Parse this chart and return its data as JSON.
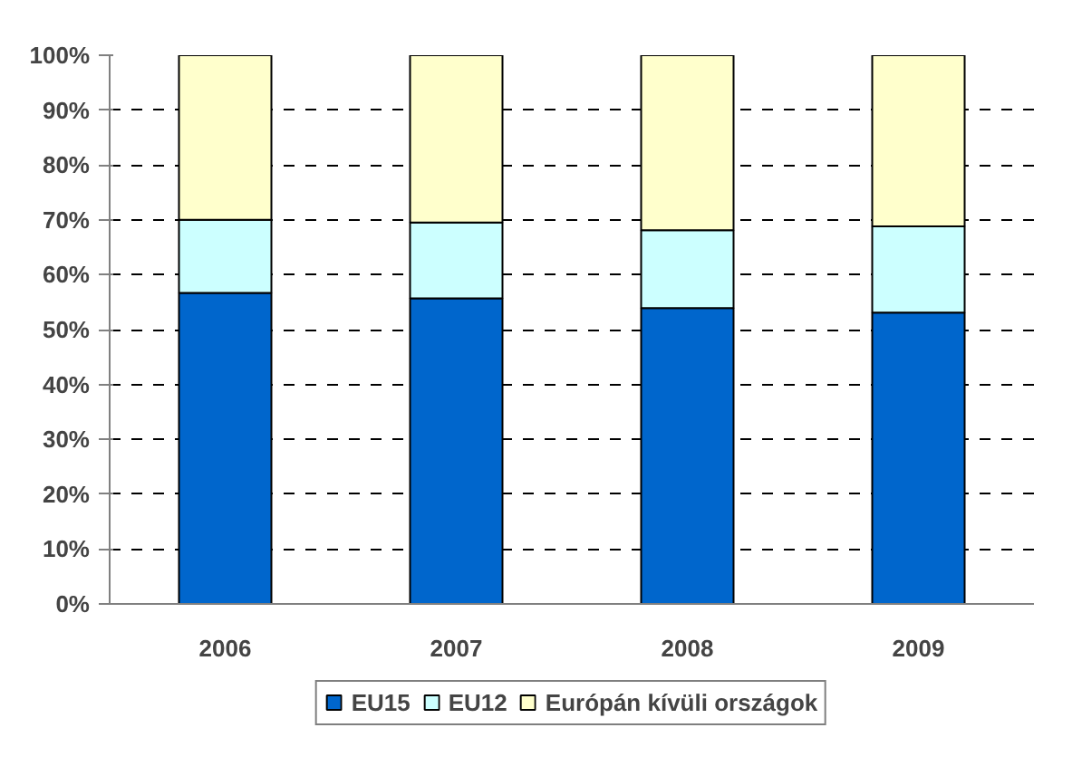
{
  "chart_data": {
    "type": "bar",
    "stacked": true,
    "categories": [
      "2006",
      "2007",
      "2008",
      "2009"
    ],
    "series": [
      {
        "name": "EU15",
        "color": "#0066cc",
        "values": [
          56.7,
          55.7,
          53.9,
          53.1
        ]
      },
      {
        "name": "EU12",
        "color": "#ccffff",
        "values": [
          13.3,
          13.8,
          14.2,
          15.7
        ]
      },
      {
        "name": "Európán kívüli országok",
        "color": "#ffffcc",
        "values": [
          30.0,
          30.5,
          31.9,
          31.2
        ]
      }
    ],
    "ylim": [
      0,
      100
    ],
    "yticks": [
      {
        "value": 0,
        "label": "0%"
      },
      {
        "value": 10,
        "label": "10%"
      },
      {
        "value": 20,
        "label": "20%"
      },
      {
        "value": 30,
        "label": "30%"
      },
      {
        "value": 40,
        "label": "40%"
      },
      {
        "value": 50,
        "label": "50%"
      },
      {
        "value": 60,
        "label": "60%"
      },
      {
        "value": 70,
        "label": "70%"
      },
      {
        "value": 80,
        "label": "80%"
      },
      {
        "value": 90,
        "label": "90%"
      },
      {
        "value": 100,
        "label": "100%"
      }
    ],
    "grid": "y",
    "legend": "bottom"
  }
}
